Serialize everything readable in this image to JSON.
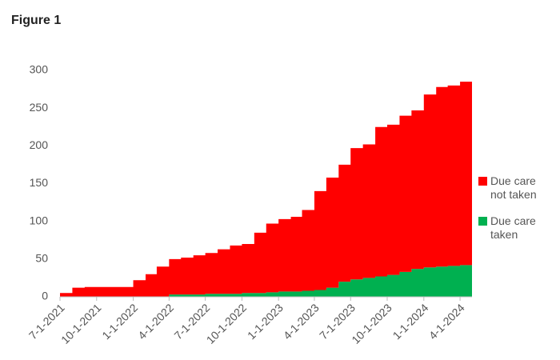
{
  "title": "Figure 1",
  "chart_data": {
    "type": "stacked-area",
    "x": [
      "2021-07-01",
      "2021-08-01",
      "2021-09-01",
      "2021-10-01",
      "2021-11-01",
      "2021-12-01",
      "2022-01-01",
      "2022-02-01",
      "2022-03-01",
      "2022-04-01",
      "2022-05-01",
      "2022-06-01",
      "2022-07-01",
      "2022-08-01",
      "2022-09-01",
      "2022-10-01",
      "2022-11-01",
      "2022-12-01",
      "2023-01-01",
      "2023-02-01",
      "2023-03-01",
      "2023-04-01",
      "2023-05-01",
      "2023-06-01",
      "2023-07-01",
      "2023-08-01",
      "2023-09-01",
      "2023-10-01",
      "2023-11-01",
      "2023-12-01",
      "2024-01-01",
      "2024-02-01",
      "2024-03-01",
      "2024-04-01",
      "2024-05-01"
    ],
    "series": [
      {
        "name": "Due care taken",
        "color": "#00b050",
        "values": [
          0,
          0,
          0,
          0,
          0,
          0,
          0,
          0,
          0,
          3,
          3,
          3,
          4,
          4,
          4,
          5,
          5,
          6,
          7,
          7,
          8,
          9,
          12,
          20,
          23,
          25,
          27,
          29,
          33,
          37,
          39,
          40,
          41,
          42,
          43
        ]
      },
      {
        "name": "Due care not taken",
        "color": "#ff0000",
        "values": [
          5,
          12,
          13,
          13,
          13,
          13,
          22,
          30,
          40,
          47,
          49,
          52,
          54,
          59,
          64,
          65,
          80,
          91,
          96,
          99,
          107,
          131,
          146,
          155,
          174,
          177,
          198,
          199,
          207,
          210,
          229,
          238,
          239,
          243,
          247
        ]
      }
    ],
    "xlim": [
      "2021-07-01",
      "2024-05-01"
    ],
    "xticks": [
      {
        "value": "2021-07-01",
        "label": "7-1-2021"
      },
      {
        "value": "2021-10-01",
        "label": "10-1-2021"
      },
      {
        "value": "2022-01-01",
        "label": "1-1-2022"
      },
      {
        "value": "2022-04-01",
        "label": "4-1-2022"
      },
      {
        "value": "2022-07-01",
        "label": "7-1-2022"
      },
      {
        "value": "2022-10-01",
        "label": "10-1-2022"
      },
      {
        "value": "2023-01-01",
        "label": "1-1-2023"
      },
      {
        "value": "2023-04-01",
        "label": "4-1-2023"
      },
      {
        "value": "2023-07-01",
        "label": "7-1-2023"
      },
      {
        "value": "2023-10-01",
        "label": "10-1-2023"
      },
      {
        "value": "2024-01-01",
        "label": "1-1-2024"
      },
      {
        "value": "2024-04-01",
        "label": "4-1-2024"
      }
    ],
    "ylim": [
      0,
      300
    ],
    "yticks": [
      0,
      50,
      100,
      150,
      200,
      250,
      300
    ],
    "grid": false,
    "legend": "right"
  }
}
